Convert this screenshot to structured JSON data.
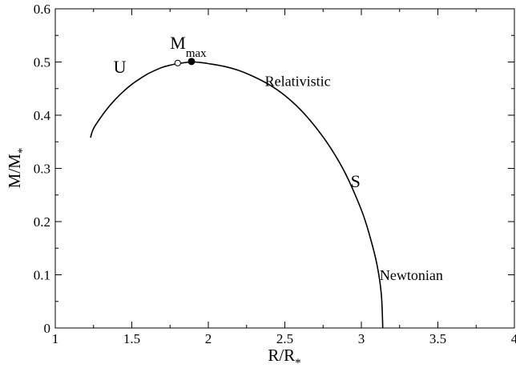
{
  "chart_data": {
    "type": "line",
    "xlabel": {
      "main": "R/R",
      "sub": "*"
    },
    "ylabel": {
      "main": "M/M",
      "sub": "*"
    },
    "xlim": [
      1,
      4
    ],
    "ylim": [
      0,
      0.6
    ],
    "x_ticks": [
      1,
      1.5,
      2,
      2.5,
      3,
      3.5,
      4
    ],
    "x_tick_labels": [
      "1",
      "1.5",
      "2",
      "2.5",
      "3",
      "3.5",
      "4"
    ],
    "y_ticks": [
      0,
      0.1,
      0.2,
      0.3,
      0.4,
      0.5,
      0.6
    ],
    "y_tick_labels": [
      "0",
      "0.1",
      "0.2",
      "0.3",
      "0.4",
      "0.5",
      "0.6"
    ],
    "grid": false,
    "series": [
      {
        "points": [
          [
            1.23,
            0.358
          ],
          [
            1.25,
            0.375
          ],
          [
            1.3,
            0.397
          ],
          [
            1.35,
            0.416
          ],
          [
            1.4,
            0.432
          ],
          [
            1.45,
            0.446
          ],
          [
            1.5,
            0.458
          ],
          [
            1.55,
            0.468
          ],
          [
            1.6,
            0.477
          ],
          [
            1.65,
            0.484
          ],
          [
            1.7,
            0.49
          ],
          [
            1.75,
            0.494
          ],
          [
            1.8,
            0.497
          ],
          [
            1.85,
            0.499
          ],
          [
            1.9,
            0.5
          ],
          [
            1.95,
            0.499
          ],
          [
            2.0,
            0.497
          ],
          [
            2.1,
            0.492
          ],
          [
            2.2,
            0.484
          ],
          [
            2.3,
            0.472
          ],
          [
            2.4,
            0.457
          ],
          [
            2.5,
            0.437
          ],
          [
            2.6,
            0.411
          ],
          [
            2.7,
            0.378
          ],
          [
            2.8,
            0.338
          ],
          [
            2.9,
            0.288
          ],
          [
            3.0,
            0.222
          ],
          [
            3.05,
            0.178
          ],
          [
            3.1,
            0.122
          ],
          [
            3.13,
            0.065
          ],
          [
            3.14,
            0.0
          ]
        ]
      }
    ],
    "markers": [
      {
        "x": 1.8,
        "y": 0.498,
        "style": "open-circle"
      },
      {
        "x": 1.89,
        "y": 0.501,
        "style": "filled-circle"
      }
    ],
    "annotations": [
      {
        "text": "U",
        "x": 1.38,
        "y": 0.48,
        "size": "big"
      },
      {
        "text": "M",
        "sub": "max",
        "x": 1.75,
        "y": 0.525,
        "size": "big"
      },
      {
        "text": "Relativistic",
        "x": 2.37,
        "y": 0.455,
        "size": "small"
      },
      {
        "text": "S",
        "x": 2.93,
        "y": 0.265,
        "size": "big"
      },
      {
        "text": "Newtonian",
        "x": 3.12,
        "y": 0.09,
        "size": "small"
      }
    ],
    "colors": {
      "line": "#000000",
      "axes": "#000000",
      "background": "#ffffff"
    }
  }
}
